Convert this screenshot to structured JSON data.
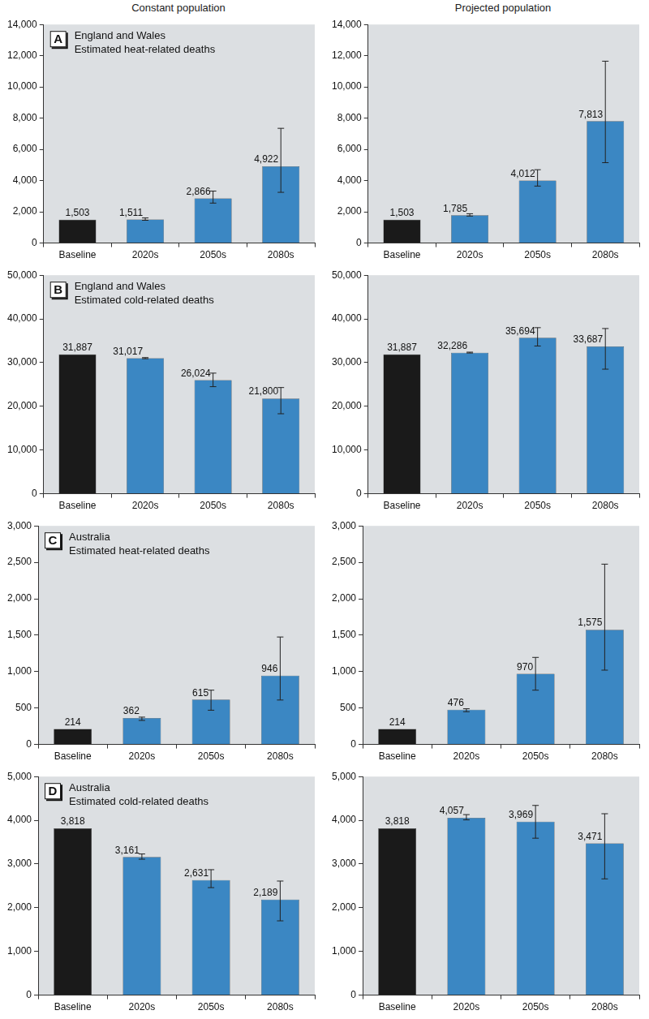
{
  "column_titles": [
    "Constant population",
    "Projected population"
  ],
  "chart_data": [
    {
      "type": "bar",
      "panel_label": "A",
      "title": [
        "England and Wales",
        "Estimated heat-related deaths"
      ],
      "categories": [
        "Baseline",
        "2020s",
        "2050s",
        "2080s"
      ],
      "values": [
        1503,
        1511,
        2866,
        4922
      ],
      "value_labels": [
        "1,503",
        "1,511",
        "2,866",
        "4,922"
      ],
      "error_low": [
        null,
        1460,
        2560,
        3250
      ],
      "error_high": [
        null,
        1610,
        3330,
        7350
      ],
      "colors": [
        "#1a1a1a",
        "#3b87c3",
        "#3b87c3",
        "#3b87c3"
      ],
      "ylim": [
        0,
        14000
      ],
      "yticks": [
        0,
        {
          "value": 2000,
          "label": "2,000"
        },
        {
          "value": 4000,
          "label": "4,000"
        },
        {
          "value": 6000,
          "label": "6,000"
        },
        {
          "value": 8000,
          "label": "8,000"
        },
        {
          "value": 10000,
          "label": "10,000"
        },
        {
          "value": 12000,
          "label": "12,000"
        },
        {
          "value": 14000,
          "label": "14,000"
        }
      ],
      "grid": false,
      "data_labels": true
    },
    {
      "type": "bar",
      "categories": [
        "Baseline",
        "2020s",
        "2050s",
        "2080s"
      ],
      "values": [
        1503,
        1785,
        4012,
        7813
      ],
      "value_labels": [
        "1,503",
        "1,785",
        "4,012",
        "7,813"
      ],
      "error_low": [
        null,
        1730,
        3650,
        5150
      ],
      "error_high": [
        null,
        1880,
        4700,
        11650
      ],
      "colors": [
        "#1a1a1a",
        "#3b87c3",
        "#3b87c3",
        "#3b87c3"
      ],
      "ylim": [
        0,
        14000
      ],
      "yticks": [
        0,
        {
          "value": 2000,
          "label": "2,000"
        },
        {
          "value": 4000,
          "label": "4,000"
        },
        {
          "value": 6000,
          "label": "6,000"
        },
        {
          "value": 8000,
          "label": "8,000"
        },
        {
          "value": 10000,
          "label": "10,000"
        },
        {
          "value": 12000,
          "label": "12,000"
        },
        {
          "value": 14000,
          "label": "14,000"
        }
      ],
      "grid": false,
      "data_labels": true
    },
    {
      "type": "bar",
      "panel_label": "B",
      "title": [
        "England and Wales",
        "Estimated cold-related deaths"
      ],
      "categories": [
        "Baseline",
        "2020s",
        "2050s",
        "2080s"
      ],
      "values": [
        31887,
        31017,
        26024,
        21800
      ],
      "value_labels": [
        "31,887",
        "31,017",
        "26,024",
        "21,800"
      ],
      "error_low": [
        null,
        30900,
        24500,
        18300
      ],
      "error_high": [
        null,
        31150,
        27600,
        24300
      ],
      "colors": [
        "#1a1a1a",
        "#3b87c3",
        "#3b87c3",
        "#3b87c3"
      ],
      "ylim": [
        0,
        50000
      ],
      "yticks": [
        0,
        {
          "value": 10000,
          "label": "10,000"
        },
        {
          "value": 20000,
          "label": "20,000"
        },
        {
          "value": 30000,
          "label": "30,000"
        },
        {
          "value": 40000,
          "label": "40,000"
        },
        {
          "value": 50000,
          "label": "50,000"
        }
      ],
      "grid": false,
      "data_labels": true
    },
    {
      "type": "bar",
      "categories": [
        "Baseline",
        "2020s",
        "2050s",
        "2080s"
      ],
      "values": [
        31887,
        32286,
        35694,
        33687
      ],
      "value_labels": [
        "31,887",
        "32,286",
        "35,694",
        "33,687"
      ],
      "error_low": [
        null,
        32200,
        33800,
        28500
      ],
      "error_high": [
        null,
        32400,
        38000,
        37800
      ],
      "colors": [
        "#1a1a1a",
        "#3b87c3",
        "#3b87c3",
        "#3b87c3"
      ],
      "ylim": [
        0,
        50000
      ],
      "yticks": [
        0,
        {
          "value": 10000,
          "label": "10,000"
        },
        {
          "value": 20000,
          "label": "20,000"
        },
        {
          "value": 30000,
          "label": "30,000"
        },
        {
          "value": 40000,
          "label": "40,000"
        },
        {
          "value": 50000,
          "label": "50,000"
        }
      ],
      "grid": false,
      "data_labels": true
    },
    {
      "type": "bar",
      "panel_label": "C",
      "title": [
        "Australia",
        "Estimated heat-related deaths"
      ],
      "categories": [
        "Baseline",
        "2020s",
        "2050s",
        "2080s"
      ],
      "values": [
        214,
        362,
        615,
        946
      ],
      "value_labels": [
        "214",
        "362",
        "615",
        "946"
      ],
      "error_low": [
        null,
        330,
        470,
        610
      ],
      "error_high": [
        null,
        375,
        745,
        1475
      ],
      "colors": [
        "#1a1a1a",
        "#3b87c3",
        "#3b87c3",
        "#3b87c3"
      ],
      "ylim": [
        0,
        3000
      ],
      "yticks": [
        0,
        500,
        {
          "value": 1000,
          "label": "1,000"
        },
        {
          "value": 1500,
          "label": "1,500"
        },
        {
          "value": 2000,
          "label": "2,000"
        },
        {
          "value": 2500,
          "label": "2,500"
        },
        {
          "value": 3000,
          "label": "3,000"
        }
      ],
      "grid": false,
      "data_labels": true
    },
    {
      "type": "bar",
      "categories": [
        "Baseline",
        "2020s",
        "2050s",
        "2080s"
      ],
      "values": [
        214,
        476,
        970,
        1575
      ],
      "value_labels": [
        "214",
        "476",
        "970",
        "1,575"
      ],
      "error_low": [
        null,
        450,
        745,
        1020
      ],
      "error_high": [
        null,
        490,
        1195,
        2475
      ],
      "colors": [
        "#1a1a1a",
        "#3b87c3",
        "#3b87c3",
        "#3b87c3"
      ],
      "ylim": [
        0,
        3000
      ],
      "yticks": [
        0,
        500,
        {
          "value": 1000,
          "label": "1,000"
        },
        {
          "value": 1500,
          "label": "1,500"
        },
        {
          "value": 2000,
          "label": "2,000"
        },
        {
          "value": 2500,
          "label": "2,500"
        },
        {
          "value": 3000,
          "label": "3,000"
        }
      ],
      "grid": false,
      "data_labels": true
    },
    {
      "type": "bar",
      "panel_label": "D",
      "title": [
        "Australia",
        "Estimated cold-related deaths"
      ],
      "categories": [
        "Baseline",
        "2020s",
        "2050s",
        "2080s"
      ],
      "values": [
        3818,
        3161,
        2631,
        2189
      ],
      "value_labels": [
        "3,818",
        "3,161",
        "2,631",
        "2,189"
      ],
      "error_low": [
        null,
        3110,
        2460,
        1700
      ],
      "error_high": [
        null,
        3230,
        2870,
        2610
      ],
      "colors": [
        "#1a1a1a",
        "#3b87c3",
        "#3b87c3",
        "#3b87c3"
      ],
      "ylim": [
        0,
        5000
      ],
      "yticks": [
        0,
        {
          "value": 1000,
          "label": "1,000"
        },
        {
          "value": 2000,
          "label": "2,000"
        },
        {
          "value": 3000,
          "label": "3,000"
        },
        {
          "value": 4000,
          "label": "4,000"
        },
        {
          "value": 5000,
          "label": "5,000"
        }
      ],
      "grid": false,
      "data_labels": true
    },
    {
      "type": "bar",
      "categories": [
        "Baseline",
        "2020s",
        "2050s",
        "2080s"
      ],
      "values": [
        3818,
        4057,
        3969,
        3471
      ],
      "value_labels": [
        "3,818",
        "4,057",
        "3,969",
        "3,471"
      ],
      "error_low": [
        null,
        4010,
        3590,
        2660
      ],
      "error_high": [
        null,
        4130,
        4340,
        4150
      ],
      "colors": [
        "#1a1a1a",
        "#3b87c3",
        "#3b87c3",
        "#3b87c3"
      ],
      "ylim": [
        0,
        5000
      ],
      "yticks": [
        0,
        {
          "value": 1000,
          "label": "1,000"
        },
        {
          "value": 2000,
          "label": "2,000"
        },
        {
          "value": 3000,
          "label": "3,000"
        },
        {
          "value": 4000,
          "label": "4,000"
        },
        {
          "value": 5000,
          "label": "5,000"
        }
      ],
      "grid": false,
      "data_labels": true
    }
  ]
}
